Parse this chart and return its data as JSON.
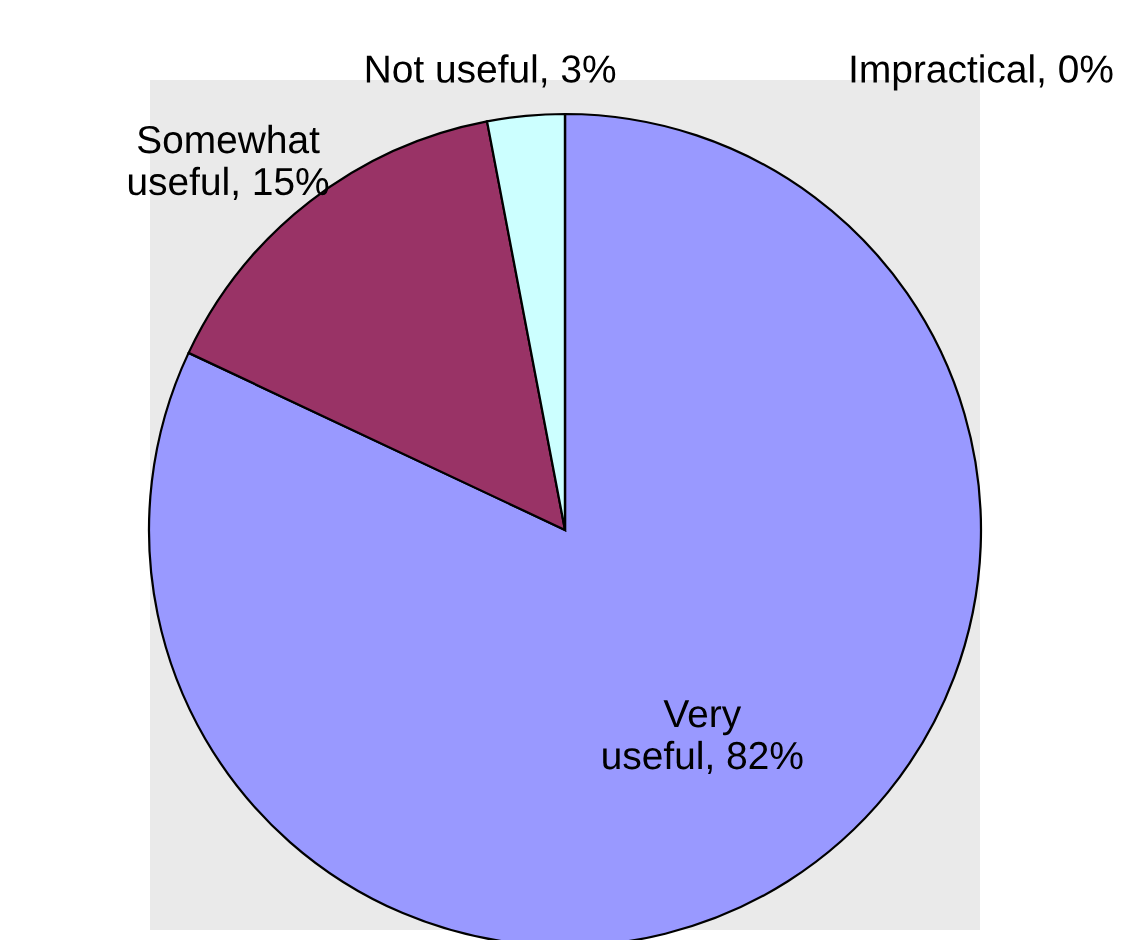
{
  "chart_data": {
    "type": "pie",
    "categories": [
      "Very useful, 82%",
      "Somewhat useful, 15%",
      "Not useful, 3%",
      "Impractical, 0%"
    ],
    "values": [
      82,
      15,
      3,
      0
    ],
    "colors": [
      "#9999ff",
      "#993366",
      "#ccffff",
      "#ffffcc"
    ],
    "legend": false
  }
}
